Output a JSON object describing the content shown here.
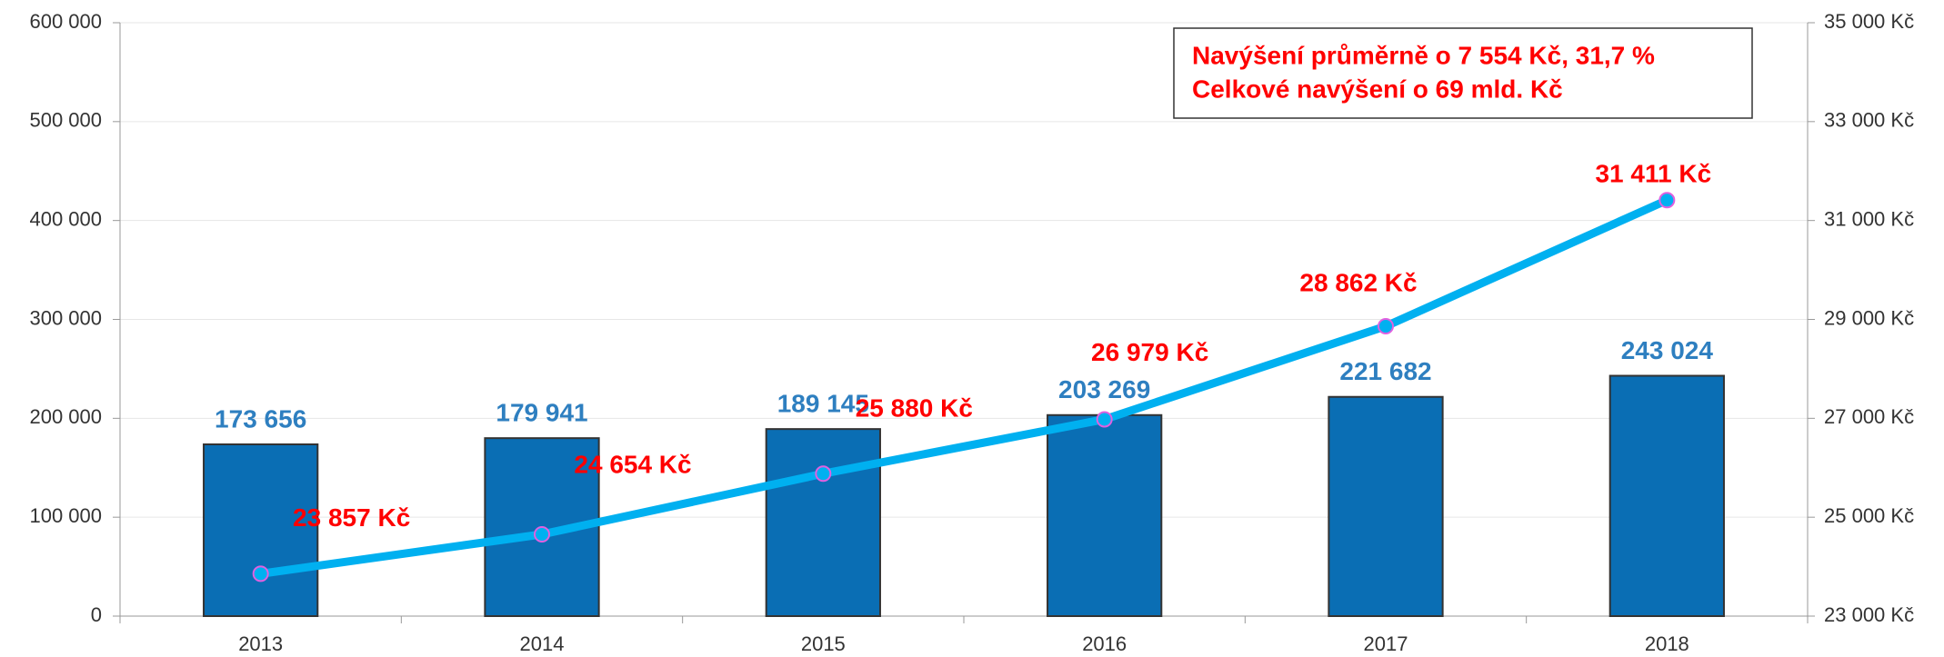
{
  "chart_data": {
    "type": "bar",
    "categories": [
      "2013",
      "2014",
      "2015",
      "2016",
      "2017",
      "2018"
    ],
    "series": [
      {
        "type": "bar",
        "color": "#0a6eb4",
        "values": [
          173656,
          179941,
          189145,
          203269,
          221682,
          243024
        ],
        "value_labels": [
          "173 656",
          "179 941",
          "189 145",
          "203 269",
          "221 682",
          "243 024"
        ],
        "label_color": "#2e7fc0"
      },
      {
        "type": "line",
        "axis": "y2",
        "color": "#00b0f0",
        "marker_color": "#e060e0",
        "values": [
          23857,
          24654,
          25880,
          26979,
          28862,
          31411
        ],
        "value_labels": [
          "23 857 Kč",
          "24 654 Kč",
          "25 880 Kč",
          "26 979 Kč",
          "28 862 Kč",
          "31 411 Kč"
        ],
        "label_color": "#ff0000"
      }
    ],
    "ylim": [
      0,
      600000
    ],
    "yticks": [
      0,
      {
        "value": 100000,
        "label": "100 000"
      },
      {
        "value": 200000,
        "label": "200 000"
      },
      {
        "value": 300000,
        "label": "300 000"
      },
      {
        "value": 400000,
        "label": "400 000"
      },
      {
        "value": 500000,
        "label": "500 000"
      },
      {
        "value": 600000,
        "label": "600 000"
      }
    ],
    "y2lim": [
      23000,
      35000
    ],
    "y2ticks": [
      {
        "value": 23000,
        "label": "23 000 Kč"
      },
      {
        "value": 25000,
        "label": "25 000 Kč"
      },
      {
        "value": 27000,
        "label": "27 000 Kč"
      },
      {
        "value": 29000,
        "label": "29 000 Kč"
      },
      {
        "value": 31000,
        "label": "31 000 Kč"
      },
      {
        "value": 33000,
        "label": "33 000 Kč"
      },
      {
        "value": 35000,
        "label": "35 000 Kč"
      }
    ],
    "grid": true,
    "annotations": [
      "Navýšení průměrně o 7 554 Kč, 31,7 %",
      "Celkové navýšení o 69 mld. Kč"
    ]
  }
}
